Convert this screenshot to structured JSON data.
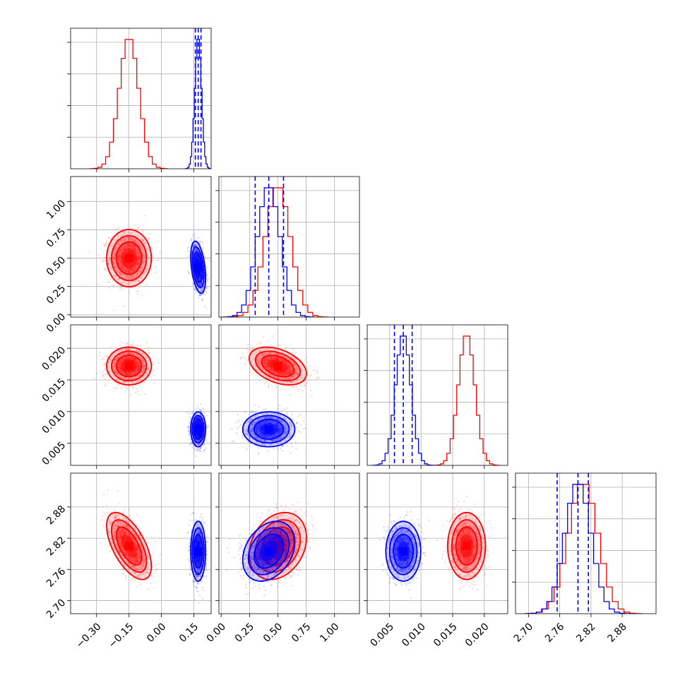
{
  "chart_data": {
    "type": "corner",
    "variables": [
      {
        "id": "p0",
        "range": [
          -0.42,
          0.23
        ],
        "ticks": [
          -0.3,
          -0.15,
          0.0,
          0.15
        ],
        "tick_labels": [
          "−0.30",
          "−0.15",
          "0.00",
          "0.15"
        ]
      },
      {
        "id": "p1",
        "range": [
          -0.02,
          1.22
        ],
        "ticks": [
          0.0,
          0.25,
          0.5,
          0.75,
          1.0
        ],
        "tick_labels": [
          "0.00",
          "0.25",
          "0.50",
          "0.75",
          "1.00"
        ]
      },
      {
        "id": "p2",
        "range": [
          0.0015,
          0.0237
        ],
        "ticks": [
          0.005,
          0.01,
          0.015,
          0.02
        ],
        "tick_labels": [
          "0.005",
          "0.010",
          "0.015",
          "0.020"
        ]
      },
      {
        "id": "p3",
        "range": [
          2.675,
          2.945
        ],
        "ticks": [
          2.7,
          2.76,
          2.82,
          2.88
        ],
        "tick_labels": [
          "2.70",
          "2.76",
          "2.82",
          "2.88"
        ]
      }
    ],
    "series": [
      {
        "color": "#ff0000",
        "means": [
          -0.15,
          0.5,
          0.0172,
          2.805
        ],
        "sigmas": [
          0.045,
          0.11,
          0.0013,
          0.028
        ],
        "correlations": {
          "1-0": 0.0,
          "2-0": 0.0,
          "2-1": -0.4,
          "3-0": -0.6,
          "3-1": 0.25,
          "3-2": 0.0
        },
        "quantiles": []
      },
      {
        "color": "#0000ff",
        "means": [
          0.17,
          0.42,
          0.0072,
          2.795
        ],
        "sigmas": [
          0.015,
          0.1,
          0.0012,
          0.025
        ],
        "correlations": {
          "1-0": -0.4,
          "2-0": 0.0,
          "2-1": 0.0,
          "3-0": 0.0,
          "3-1": 0.3,
          "3-2": 0.0
        },
        "quantiles": [
          [
            0.157,
            0.17,
            0.183
          ],
          [
            0.3,
            0.42,
            0.55
          ],
          [
            0.0058,
            0.0072,
            0.0086
          ],
          [
            2.755,
            2.795,
            2.815
          ]
        ]
      }
    ],
    "grid": true,
    "histogram_bins": 20,
    "sample_points": 1300
  }
}
